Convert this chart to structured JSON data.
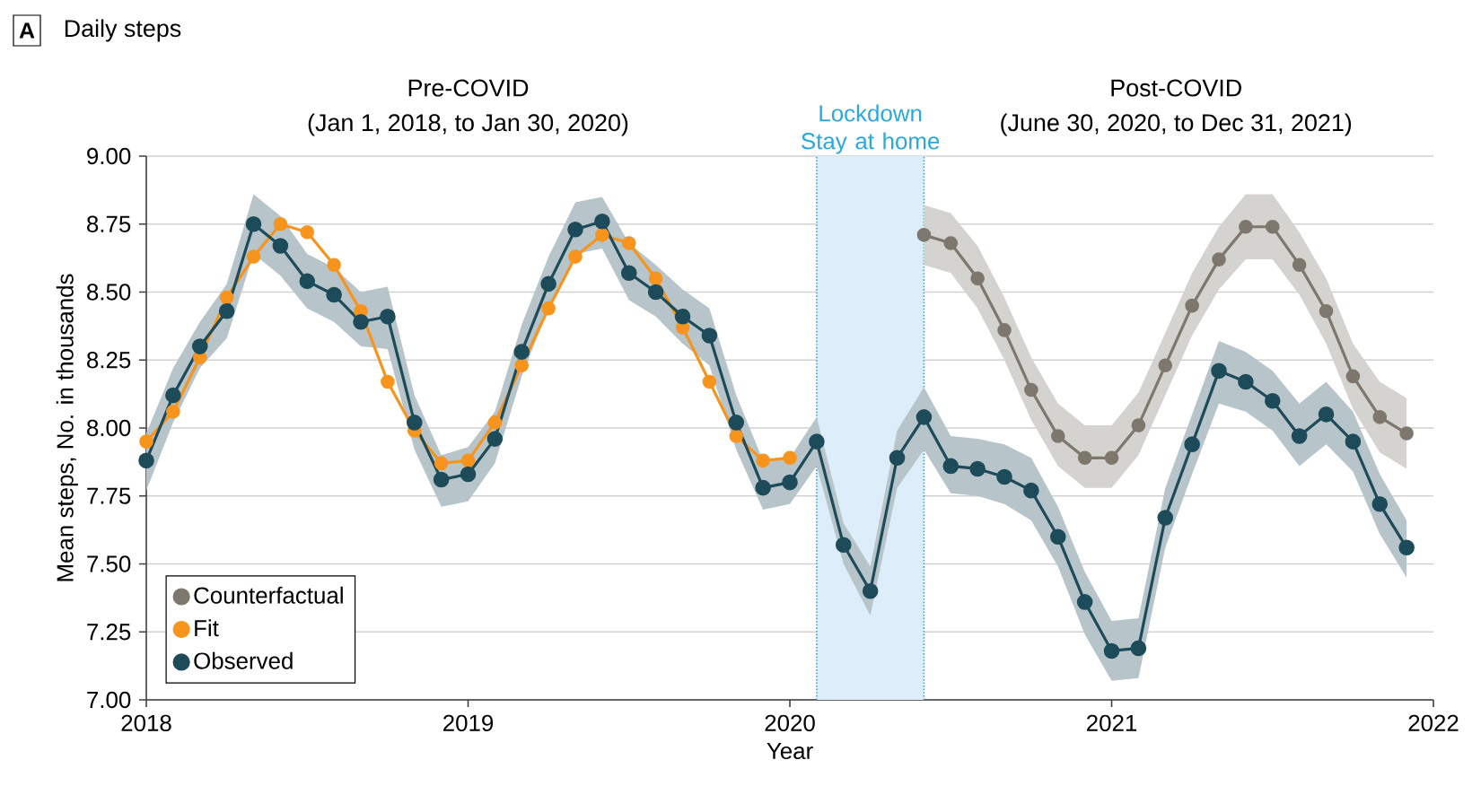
{
  "chart_data": {
    "type": "line",
    "title": "Daily steps",
    "xlabel": "Year",
    "ylabel": "Mean steps, No. in thousands",
    "annotations": [
      "A",
      "Pre-COVID",
      "(Jan 1, 2018, to Jan 30, 2020)",
      "Post-COVID",
      "(June 30, 2020, to Dec 31, 2021)"
    ],
    "series": [
      {
        "name": "Counterfactual",
        "color": "#7d776d",
        "x": [
          "2020-06",
          "2020-07",
          "2020-08",
          "2020-09",
          "2020-10",
          "2020-11",
          "2020-12",
          "2021-01",
          "2021-02",
          "2021-03",
          "2021-04",
          "2021-05",
          "2021-06",
          "2021-07",
          "2021-08",
          "2021-09",
          "2021-10",
          "2021-11",
          "2021-12"
        ],
        "values": [
          8.71,
          8.68,
          8.55,
          8.36,
          8.14,
          7.97,
          7.89,
          7.89,
          8.01,
          8.23,
          8.45,
          8.62,
          8.74,
          8.74,
          8.6,
          8.43,
          8.19,
          8.04,
          7.98
        ],
        "lower": [
          8.6,
          8.57,
          8.44,
          8.25,
          8.03,
          7.86,
          7.78,
          7.78,
          7.9,
          8.12,
          8.34,
          8.51,
          8.62,
          8.62,
          8.49,
          8.31,
          8.07,
          7.91,
          7.85
        ],
        "upper": [
          8.82,
          8.79,
          8.67,
          8.48,
          8.26,
          8.09,
          8.01,
          8.01,
          8.13,
          8.35,
          8.57,
          8.74,
          8.86,
          8.86,
          8.72,
          8.55,
          8.31,
          8.17,
          8.11
        ]
      },
      {
        "name": "Fit",
        "color": "#f7941d",
        "x": [
          "2018-01",
          "2018-02",
          "2018-03",
          "2018-04",
          "2018-05",
          "2018-06",
          "2018-07",
          "2018-08",
          "2018-09",
          "2018-10",
          "2018-11",
          "2018-12",
          "2019-01",
          "2019-02",
          "2019-03",
          "2019-04",
          "2019-05",
          "2019-06",
          "2019-07",
          "2019-08",
          "2019-09",
          "2019-10",
          "2019-11",
          "2019-12",
          "2020-01"
        ],
        "values": [
          7.95,
          8.06,
          8.26,
          8.48,
          8.63,
          8.75,
          8.72,
          8.6,
          8.43,
          8.17,
          7.99,
          7.87,
          7.88,
          8.02,
          8.23,
          8.44,
          8.63,
          8.71,
          8.68,
          8.55,
          8.37,
          8.17,
          7.97,
          7.88,
          7.89
        ]
      },
      {
        "name": "Observed",
        "color": "#1d4b5a",
        "x": [
          "2018-01",
          "2018-02",
          "2018-03",
          "2018-04",
          "2018-05",
          "2018-06",
          "2018-07",
          "2018-08",
          "2018-09",
          "2018-10",
          "2018-11",
          "2018-12",
          "2019-01",
          "2019-02",
          "2019-03",
          "2019-04",
          "2019-05",
          "2019-06",
          "2019-07",
          "2019-08",
          "2019-09",
          "2019-10",
          "2019-11",
          "2019-12",
          "2020-01",
          "2020-02",
          "2020-03",
          "2020-04",
          "2020-05",
          "2020-06",
          "2020-07",
          "2020-08",
          "2020-09",
          "2020-10",
          "2020-11",
          "2020-12",
          "2021-01",
          "2021-02",
          "2021-03",
          "2021-04",
          "2021-05",
          "2021-06",
          "2021-07",
          "2021-08",
          "2021-09",
          "2021-10",
          "2021-11",
          "2021-12"
        ],
        "values": [
          7.88,
          8.12,
          8.3,
          8.43,
          8.75,
          8.67,
          8.54,
          8.49,
          8.39,
          8.41,
          8.02,
          7.81,
          7.83,
          7.96,
          8.28,
          8.53,
          8.73,
          8.76,
          8.57,
          8.5,
          8.41,
          8.34,
          8.02,
          7.78,
          7.8,
          7.95,
          7.57,
          7.4,
          7.89,
          8.04,
          7.86,
          7.85,
          7.82,
          7.77,
          7.6,
          7.36,
          7.18,
          7.19,
          7.67,
          7.94,
          8.21,
          8.17,
          8.1,
          7.97,
          8.05,
          7.95,
          7.72,
          7.56
        ],
        "lower": [
          7.77,
          8.02,
          8.22,
          8.33,
          8.64,
          8.56,
          8.44,
          8.39,
          8.3,
          8.29,
          7.92,
          7.71,
          7.73,
          7.87,
          8.19,
          8.44,
          8.64,
          8.66,
          8.47,
          8.41,
          8.31,
          8.23,
          7.92,
          7.7,
          7.72,
          7.86,
          7.5,
          7.31,
          7.78,
          7.92,
          7.76,
          7.75,
          7.72,
          7.66,
          7.49,
          7.24,
          7.07,
          7.08,
          7.56,
          7.83,
          8.09,
          8.06,
          7.99,
          7.86,
          7.94,
          7.84,
          7.61,
          7.45
        ],
        "upper": [
          7.98,
          8.22,
          8.39,
          8.53,
          8.86,
          8.78,
          8.64,
          8.59,
          8.5,
          8.52,
          8.12,
          7.9,
          7.93,
          8.06,
          8.38,
          8.63,
          8.83,
          8.85,
          8.68,
          8.6,
          8.51,
          8.44,
          8.12,
          7.88,
          7.89,
          8.04,
          7.65,
          7.49,
          7.99,
          8.15,
          7.97,
          7.96,
          7.94,
          7.89,
          7.71,
          7.47,
          7.29,
          7.3,
          7.78,
          8.05,
          8.32,
          8.28,
          8.21,
          8.09,
          8.17,
          8.06,
          7.83,
          7.66
        ]
      }
    ],
    "bands": [
      {
        "axis": "x",
        "from": "2020-02",
        "to": "2020-06",
        "label": "Lockdown Stay at home",
        "color": "#ddedf9"
      }
    ],
    "ref_lines": [
      {
        "axis": "x",
        "value": "2020-02",
        "color": "#29a8e0",
        "line_style": "dotted"
      },
      {
        "axis": "x",
        "value": "2020-06",
        "color": "#29a8e0",
        "line_style": "dotted"
      }
    ],
    "xlim": [
      "2018",
      "2022"
    ],
    "xticks": [
      "2018",
      "2019",
      "2020",
      "2021",
      "2022"
    ],
    "ylim": [
      7,
      9
    ],
    "yticks": [
      {
        "value": 7,
        "label": "7.00"
      },
      {
        "value": 7.25,
        "label": "7.25"
      },
      {
        "value": 7.5,
        "label": "7.50"
      },
      {
        "value": 7.75,
        "label": "7.75"
      },
      {
        "value": 8,
        "label": "8.00"
      },
      {
        "value": 8.25,
        "label": "8.25"
      },
      {
        "value": 8.5,
        "label": "8.50"
      },
      {
        "value": 8.75,
        "label": "8.75"
      },
      {
        "value": 9,
        "label": "9.00"
      }
    ],
    "grid": "y",
    "legend": "bottom left",
    "marker": "circle",
    "line_style": "solid"
  }
}
